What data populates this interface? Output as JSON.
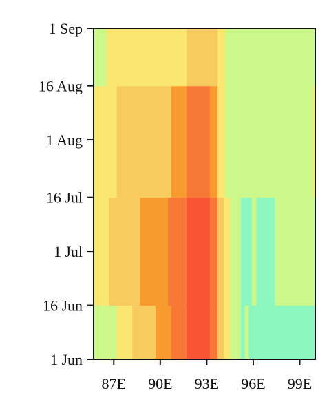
{
  "chart_data": {
    "type": "heatmap",
    "title": "",
    "xlabel": "",
    "ylabel": "",
    "x_ticks": [
      {
        "value": 87,
        "label": "87E"
      },
      {
        "value": 90,
        "label": "90E"
      },
      {
        "value": 93,
        "label": "93E"
      },
      {
        "value": 96,
        "label": "96E"
      },
      {
        "value": 99,
        "label": "99E"
      }
    ],
    "y_ticks": [
      {
        "value": 0,
        "label": "1 Jun"
      },
      {
        "value": 15,
        "label": "16 Jun"
      },
      {
        "value": 30,
        "label": "1 Jul"
      },
      {
        "value": 45,
        "label": "16 Jul"
      },
      {
        "value": 61,
        "label": "1 Aug"
      },
      {
        "value": 76,
        "label": "16 Aug"
      },
      {
        "value": 92,
        "label": "1 Sep"
      }
    ],
    "xlim": [
      85.7,
      100.0
    ],
    "ylim": [
      0,
      92
    ],
    "y_units": "days since 1 Jun",
    "palette": {
      "G": "#cbf78b",
      "Y": "#f9e771",
      "L": "#f8cb60",
      "O": "#f89b2e",
      "R": "#f87838",
      "D": "#f85535",
      "T": "#8cf8c0"
    },
    "cells": [
      {
        "x0": 85.7,
        "x1": 87.2,
        "y0": 0,
        "y1": 15,
        "c": "G"
      },
      {
        "x0": 87.2,
        "x1": 88.2,
        "y0": 0,
        "y1": 15,
        "c": "Y"
      },
      {
        "x0": 88.2,
        "x1": 89.7,
        "y0": 0,
        "y1": 15,
        "c": "L"
      },
      {
        "x0": 89.7,
        "x1": 90.7,
        "y0": 0,
        "y1": 15,
        "c": "O"
      },
      {
        "x0": 90.7,
        "x1": 91.7,
        "y0": 0,
        "y1": 15,
        "c": "R"
      },
      {
        "x0": 91.7,
        "x1": 93.2,
        "y0": 0,
        "y1": 15,
        "c": "D"
      },
      {
        "x0": 93.2,
        "x1": 93.7,
        "y0": 0,
        "y1": 15,
        "c": "R"
      },
      {
        "x0": 93.7,
        "x1": 94.1,
        "y0": 0,
        "y1": 15,
        "c": "L"
      },
      {
        "x0": 94.1,
        "x1": 94.5,
        "y0": 0,
        "y1": 15,
        "c": "Y"
      },
      {
        "x0": 94.5,
        "x1": 95.2,
        "y0": 0,
        "y1": 15,
        "c": "G"
      },
      {
        "x0": 95.2,
        "x1": 95.45,
        "y0": 0,
        "y1": 15,
        "c": "T"
      },
      {
        "x0": 95.45,
        "x1": 95.7,
        "y0": 0,
        "y1": 15,
        "c": "G"
      },
      {
        "x0": 95.7,
        "x1": 100.0,
        "y0": 0,
        "y1": 15,
        "c": "T"
      },
      {
        "x0": 85.7,
        "x1": 86.7,
        "y0": 15,
        "y1": 45,
        "c": "Y"
      },
      {
        "x0": 86.7,
        "x1": 88.7,
        "y0": 15,
        "y1": 45,
        "c": "L"
      },
      {
        "x0": 88.7,
        "x1": 90.5,
        "y0": 15,
        "y1": 45,
        "c": "O"
      },
      {
        "x0": 90.5,
        "x1": 91.7,
        "y0": 15,
        "y1": 45,
        "c": "R"
      },
      {
        "x0": 91.7,
        "x1": 93.2,
        "y0": 15,
        "y1": 45,
        "c": "D"
      },
      {
        "x0": 93.2,
        "x1": 93.7,
        "y0": 15,
        "y1": 45,
        "c": "R"
      },
      {
        "x0": 93.7,
        "x1": 94.1,
        "y0": 15,
        "y1": 45,
        "c": "L"
      },
      {
        "x0": 94.1,
        "x1": 94.5,
        "y0": 15,
        "y1": 45,
        "c": "Y"
      },
      {
        "x0": 94.5,
        "x1": 95.2,
        "y0": 15,
        "y1": 45,
        "c": "G"
      },
      {
        "x0": 95.2,
        "x1": 95.9,
        "y0": 15,
        "y1": 45,
        "c": "T"
      },
      {
        "x0": 95.9,
        "x1": 96.2,
        "y0": 15,
        "y1": 45,
        "c": "G"
      },
      {
        "x0": 96.2,
        "x1": 97.4,
        "y0": 15,
        "y1": 45,
        "c": "T"
      },
      {
        "x0": 97.4,
        "x1": 100.0,
        "y0": 15,
        "y1": 45,
        "c": "G"
      },
      {
        "x0": 85.7,
        "x1": 87.2,
        "y0": 45,
        "y1": 76,
        "c": "Y"
      },
      {
        "x0": 87.2,
        "x1": 90.7,
        "y0": 45,
        "y1": 76,
        "c": "L"
      },
      {
        "x0": 90.7,
        "x1": 91.7,
        "y0": 45,
        "y1": 76,
        "c": "O"
      },
      {
        "x0": 91.7,
        "x1": 93.2,
        "y0": 45,
        "y1": 76,
        "c": "R"
      },
      {
        "x0": 93.2,
        "x1": 93.7,
        "y0": 45,
        "y1": 76,
        "c": "O"
      },
      {
        "x0": 93.7,
        "x1": 94.2,
        "y0": 45,
        "y1": 76,
        "c": "Y"
      },
      {
        "x0": 94.2,
        "x1": 99.85,
        "y0": 45,
        "y1": 76,
        "c": "G"
      },
      {
        "x0": 99.85,
        "x1": 100.0,
        "y0": 45,
        "y1": 76,
        "c": "Y"
      },
      {
        "x0": 85.7,
        "x1": 86.5,
        "y0": 76,
        "y1": 92,
        "c": "G"
      },
      {
        "x0": 86.5,
        "x1": 91.7,
        "y0": 76,
        "y1": 92,
        "c": "Y"
      },
      {
        "x0": 91.7,
        "x1": 93.7,
        "y0": 76,
        "y1": 92,
        "c": "L"
      },
      {
        "x0": 93.7,
        "x1": 94.2,
        "y0": 76,
        "y1": 92,
        "c": "Y"
      },
      {
        "x0": 94.2,
        "x1": 100.0,
        "y0": 76,
        "y1": 92,
        "c": "G"
      }
    ]
  }
}
